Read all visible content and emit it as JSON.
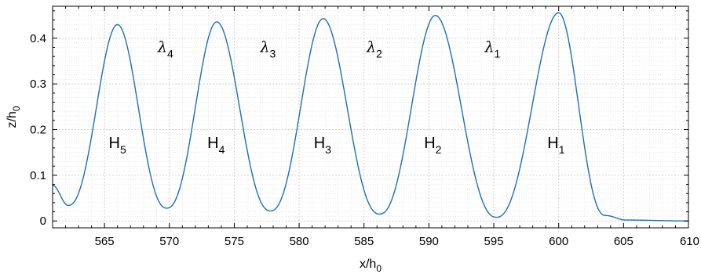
{
  "chart_data": {
    "type": "line",
    "title": "",
    "xlabel": {
      "base": "x/h",
      "sub": "0"
    },
    "ylabel": {
      "base": "z/h",
      "sub": "0"
    },
    "xlim": [
      561,
      610
    ],
    "ylim": [
      -0.015,
      0.47
    ],
    "xticks": [
      565,
      570,
      575,
      580,
      585,
      590,
      595,
      600,
      605,
      610
    ],
    "yticks": [
      0,
      0.1,
      0.2,
      0.3,
      0.4
    ],
    "ytick_labels": [
      "0",
      "0.1",
      "0.2",
      "0.3",
      "0.4"
    ],
    "grid": true,
    "line_color": "#1f6fb5",
    "series": [
      {
        "name": "",
        "peaks": [
          {
            "x": 566.0,
            "y": 0.43
          },
          {
            "x": 573.65,
            "y": 0.436
          },
          {
            "x": 581.85,
            "y": 0.443
          },
          {
            "x": 590.5,
            "y": 0.45
          },
          {
            "x": 600.0,
            "y": 0.456
          }
        ],
        "troughs": [
          {
            "x": 562.2,
            "y": 0.034
          },
          {
            "x": 569.8,
            "y": 0.028
          },
          {
            "x": 577.8,
            "y": 0.022
          },
          {
            "x": 586.2,
            "y": 0.015
          },
          {
            "x": 595.2,
            "y": 0.008
          }
        ],
        "start": {
          "x": 561.0,
          "y": 0.078
        },
        "tail_level": 0.0
      }
    ],
    "annotations": [
      {
        "base": "H",
        "sub": "5",
        "x": 566.0,
        "y": 0.16,
        "kind": "height"
      },
      {
        "base": "H",
        "sub": "4",
        "x": 573.6,
        "y": 0.16,
        "kind": "height"
      },
      {
        "base": "H",
        "sub": "3",
        "x": 581.8,
        "y": 0.16,
        "kind": "height"
      },
      {
        "base": "H",
        "sub": "2",
        "x": 590.3,
        "y": 0.16,
        "kind": "height"
      },
      {
        "base": "H",
        "sub": "1",
        "x": 599.8,
        "y": 0.16,
        "kind": "height"
      },
      {
        "base": "λ",
        "sub": "4",
        "x": 569.7,
        "y": 0.37,
        "kind": "wavelength"
      },
      {
        "base": "λ",
        "sub": "3",
        "x": 577.6,
        "y": 0.37,
        "kind": "wavelength"
      },
      {
        "base": "λ",
        "sub": "2",
        "x": 585.8,
        "y": 0.37,
        "kind": "wavelength"
      },
      {
        "base": "λ",
        "sub": "1",
        "x": 594.9,
        "y": 0.37,
        "kind": "wavelength"
      }
    ]
  }
}
